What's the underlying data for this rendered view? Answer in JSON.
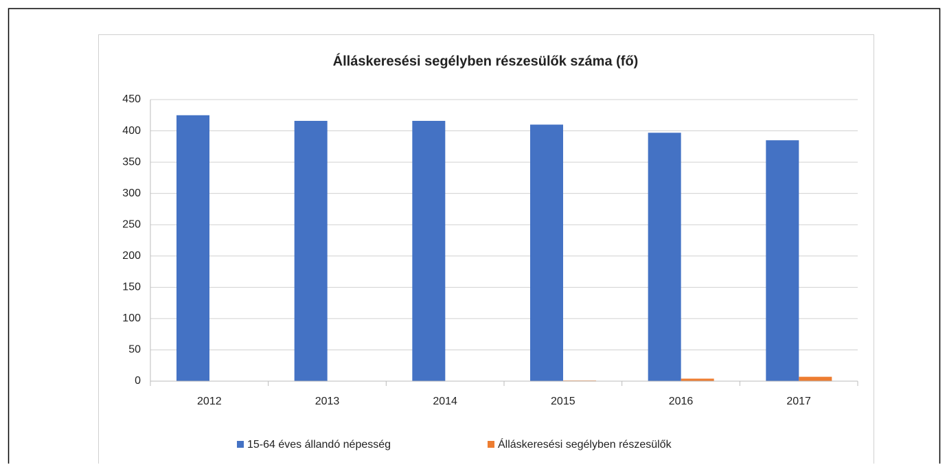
{
  "chart_data": {
    "type": "bar",
    "title": "Álláskeresési segélyben részesülők száma (fő)",
    "categories": [
      "2012",
      "2013",
      "2014",
      "2015",
      "2016",
      "2017"
    ],
    "series": [
      {
        "name": "15-64 éves állandó népesség",
        "color": "#4472c4",
        "values": [
          425,
          416,
          416,
          410,
          397,
          385
        ]
      },
      {
        "name": "Álláskeresési segélyben részesülők",
        "color": "#ed7d31",
        "values": [
          0,
          0,
          0,
          1,
          4,
          7
        ]
      }
    ],
    "ylim": [
      0,
      450
    ],
    "yticks": [
      0,
      50,
      100,
      150,
      200,
      250,
      300,
      350,
      400,
      450
    ],
    "grid": true,
    "legend": "bottom"
  }
}
